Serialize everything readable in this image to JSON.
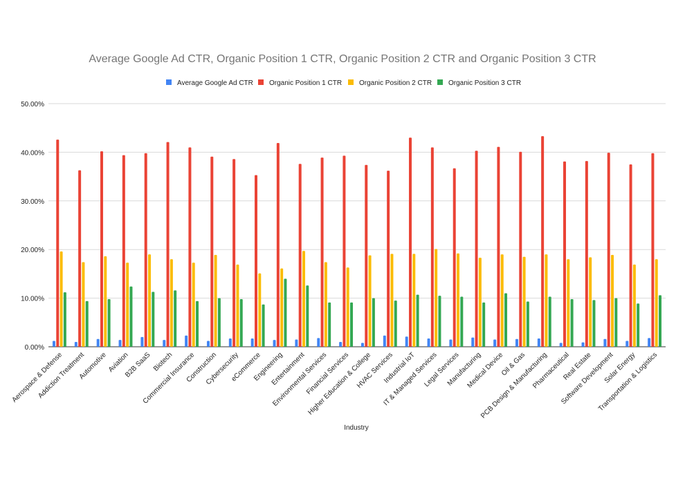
{
  "chart_data": {
    "type": "bar",
    "title": "Average Google Ad CTR, Organic Position 1 CTR, Organic Position 2 CTR and Organic Position 3 CTR",
    "xlabel": "Industry",
    "ylabel": "",
    "ylim": [
      0,
      50
    ],
    "yticks": [
      "0.00%",
      "10.00%",
      "20.00%",
      "30.00%",
      "40.00%",
      "50.00%"
    ],
    "grid": true,
    "legend": "top",
    "categories": [
      "Aerospace & Defense",
      "Addiction Treatment",
      "Automotive",
      "Aviation",
      "B2B SaaS",
      "Biotech",
      "Commercial Insurance",
      "Construction",
      "Cybersecurity",
      "eCommerce",
      "Engineering",
      "Entertainment",
      "Environmental Services",
      "Financial Services",
      "Higher Education & College",
      "HVAC Services",
      "Industrial IoT",
      "IT & Managed Services",
      "Legal Services",
      "Manufacturing",
      "Medical Device",
      "Oil & Gas",
      "PCB Design & Manufacturing",
      "Pharmaceutical",
      "Real Estate",
      "Software Development",
      "Solar Energy",
      "Transportation & Logistics"
    ],
    "series": [
      {
        "name": "Average Google Ad CTR",
        "color": "#4285f4",
        "values": [
          1.2,
          1.0,
          1.6,
          1.4,
          2.0,
          1.4,
          2.3,
          1.2,
          1.7,
          1.7,
          1.4,
          1.5,
          1.8,
          1.0,
          0.8,
          2.3,
          2.1,
          1.7,
          1.5,
          1.9,
          1.5,
          1.6,
          1.7,
          0.8,
          0.9,
          1.6,
          1.2,
          1.8
        ]
      },
      {
        "name": "Organic Position 1 CTR",
        "color": "#ea4335",
        "values": [
          42.6,
          36.3,
          40.2,
          39.4,
          39.8,
          42.1,
          41.0,
          39.1,
          38.6,
          35.3,
          41.9,
          37.6,
          38.9,
          39.3,
          37.4,
          36.2,
          43.0,
          41.0,
          36.7,
          40.3,
          41.1,
          40.1,
          43.3,
          38.1,
          38.2,
          39.9,
          37.5,
          39.8
        ]
      },
      {
        "name": "Organic Position 2 CTR",
        "color": "#fbbc04",
        "values": [
          19.6,
          17.4,
          18.6,
          17.3,
          19.0,
          18.0,
          17.3,
          18.9,
          16.9,
          15.1,
          16.1,
          19.7,
          17.4,
          16.3,
          18.8,
          19.1,
          19.1,
          20.1,
          19.2,
          18.3,
          19.0,
          18.5,
          19.0,
          18.0,
          18.4,
          18.9,
          16.9,
          18.0
        ]
      },
      {
        "name": "Organic Position 3 CTR",
        "color": "#34a853",
        "values": [
          11.2,
          9.4,
          9.8,
          12.4,
          11.3,
          11.6,
          9.4,
          10.0,
          9.8,
          8.7,
          14.0,
          12.6,
          9.1,
          9.1,
          10.0,
          9.5,
          10.7,
          10.5,
          10.3,
          9.1,
          11.0,
          9.3,
          10.3,
          9.8,
          9.6,
          10.0,
          8.9,
          10.6
        ]
      }
    ]
  }
}
